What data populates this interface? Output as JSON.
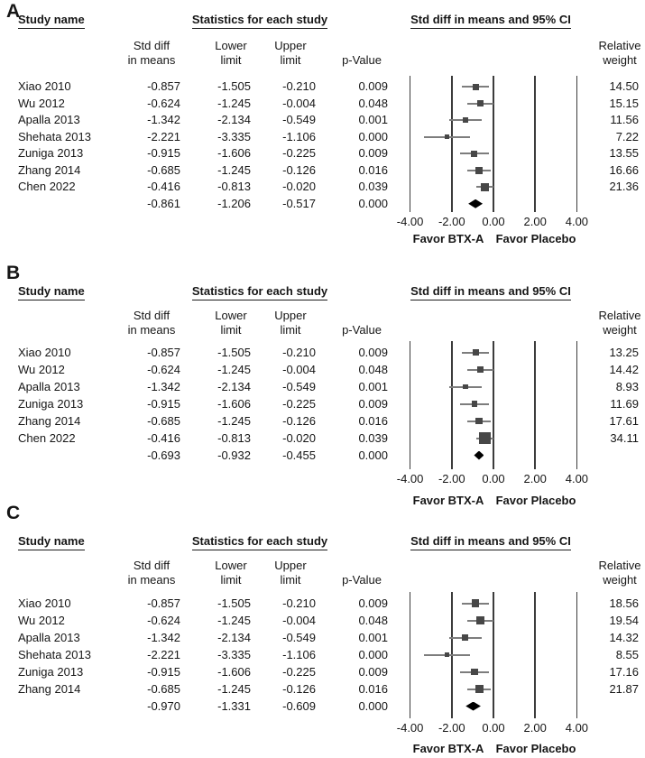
{
  "labels": {
    "study_name_header": "Study name",
    "stats_header": "Statistics for each study",
    "col_std_line1": "Std diff",
    "col_std_line2": "in means",
    "col_lower_line1": "Lower",
    "col_lower_line2": "limit",
    "col_upper_line1": "Upper",
    "col_upper_line2": "limit",
    "col_p": "p-Value",
    "col_weight_line1": "Relative",
    "col_weight_line2": "weight"
  },
  "colors": {
    "marker": "#474747",
    "ci_line": "#7d7d7d",
    "gridline": "#3c3c3c",
    "diamond": "#000000",
    "text": "#161616"
  },
  "chart_data": [
    {
      "type": "forest",
      "panel_label": "A",
      "title": "Std diff in means and 95% CI",
      "x_tick_labels": [
        "-4.00",
        "-2.00",
        "0.00",
        "2.00",
        "4.00"
      ],
      "x_ticks": [
        -4,
        -2,
        0,
        2,
        4
      ],
      "xlim": [
        -4,
        4
      ],
      "favor_left": "Favor BTX-A",
      "favor_right": "Favor Placebo",
      "studies": [
        {
          "name": "Xiao 2010",
          "std_diff": "-0.857",
          "lower": "-1.505",
          "upper": "-0.210",
          "p_value": "0.009",
          "weight": "14.50"
        },
        {
          "name": "Wu 2012",
          "std_diff": "-0.624",
          "lower": "-1.245",
          "upper": "-0.004",
          "p_value": "0.048",
          "weight": "15.15"
        },
        {
          "name": "Apalla 2013",
          "std_diff": "-1.342",
          "lower": "-2.134",
          "upper": "-0.549",
          "p_value": "0.001",
          "weight": "11.56"
        },
        {
          "name": "Shehata 2013",
          "std_diff": "-2.221",
          "lower": "-3.335",
          "upper": "-1.106",
          "p_value": "0.000",
          "weight": "7.22"
        },
        {
          "name": "Zuniga 2013",
          "std_diff": "-0.915",
          "lower": "-1.606",
          "upper": "-0.225",
          "p_value": "0.009",
          "weight": "13.55"
        },
        {
          "name": "Zhang 2014",
          "std_diff": "-0.685",
          "lower": "-1.245",
          "upper": "-0.126",
          "p_value": "0.016",
          "weight": "16.66"
        },
        {
          "name": "Chen 2022",
          "std_diff": "-0.416",
          "lower": "-0.813",
          "upper": "-0.020",
          "p_value": "0.039",
          "weight": "21.36"
        }
      ],
      "summary": {
        "std_diff": "-0.861",
        "lower": "-1.206",
        "upper": "-0.517",
        "p_value": "0.000"
      }
    },
    {
      "type": "forest",
      "panel_label": "B",
      "title": "Std diff in means and 95% CI",
      "x_tick_labels": [
        "-4.00",
        "-2.00",
        "0.00",
        "2.00",
        "4.00"
      ],
      "x_ticks": [
        -4,
        -2,
        0,
        2,
        4
      ],
      "xlim": [
        -4,
        4
      ],
      "favor_left": "Favor BTX-A",
      "favor_right": "Favor Placebo",
      "studies": [
        {
          "name": "Xiao 2010",
          "std_diff": "-0.857",
          "lower": "-1.505",
          "upper": "-0.210",
          "p_value": "0.009",
          "weight": "13.25"
        },
        {
          "name": "Wu 2012",
          "std_diff": "-0.624",
          "lower": "-1.245",
          "upper": "-0.004",
          "p_value": "0.048",
          "weight": "14.42"
        },
        {
          "name": "Apalla 2013",
          "std_diff": "-1.342",
          "lower": "-2.134",
          "upper": "-0.549",
          "p_value": "0.001",
          "weight": "8.93"
        },
        {
          "name": "Zuniga 2013",
          "std_diff": "-0.915",
          "lower": "-1.606",
          "upper": "-0.225",
          "p_value": "0.009",
          "weight": "11.69"
        },
        {
          "name": "Zhang 2014",
          "std_diff": "-0.685",
          "lower": "-1.245",
          "upper": "-0.126",
          "p_value": "0.016",
          "weight": "17.61"
        },
        {
          "name": "Chen 2022",
          "std_diff": "-0.416",
          "lower": "-0.813",
          "upper": "-0.020",
          "p_value": "0.039",
          "weight": "34.11"
        }
      ],
      "summary": {
        "std_diff": "-0.693",
        "lower": "-0.932",
        "upper": "-0.455",
        "p_value": "0.000"
      }
    },
    {
      "type": "forest",
      "panel_label": "C",
      "title": "Std diff in means and 95% CI",
      "x_tick_labels": [
        "-4.00",
        "-2.00",
        "0.00",
        "2.00",
        "4.00"
      ],
      "x_ticks": [
        -4,
        -2,
        0,
        2,
        4
      ],
      "xlim": [
        -4,
        4
      ],
      "favor_left": "Favor BTX-A",
      "favor_right": "Favor Placebo",
      "studies": [
        {
          "name": "Xiao 2010",
          "std_diff": "-0.857",
          "lower": "-1.505",
          "upper": "-0.210",
          "p_value": "0.009",
          "weight": "18.56"
        },
        {
          "name": "Wu 2012",
          "std_diff": "-0.624",
          "lower": "-1.245",
          "upper": "-0.004",
          "p_value": "0.048",
          "weight": "19.54"
        },
        {
          "name": "Apalla 2013",
          "std_diff": "-1.342",
          "lower": "-2.134",
          "upper": "-0.549",
          "p_value": "0.001",
          "weight": "14.32"
        },
        {
          "name": "Shehata 2013",
          "std_diff": "-2.221",
          "lower": "-3.335",
          "upper": "-1.106",
          "p_value": "0.000",
          "weight": "8.55"
        },
        {
          "name": "Zuniga 2013",
          "std_diff": "-0.915",
          "lower": "-1.606",
          "upper": "-0.225",
          "p_value": "0.009",
          "weight": "17.16"
        },
        {
          "name": "Zhang 2014",
          "std_diff": "-0.685",
          "lower": "-1.245",
          "upper": "-0.126",
          "p_value": "0.016",
          "weight": "21.87"
        }
      ],
      "summary": {
        "std_diff": "-0.970",
        "lower": "-1.331",
        "upper": "-0.609",
        "p_value": "0.000"
      }
    }
  ]
}
